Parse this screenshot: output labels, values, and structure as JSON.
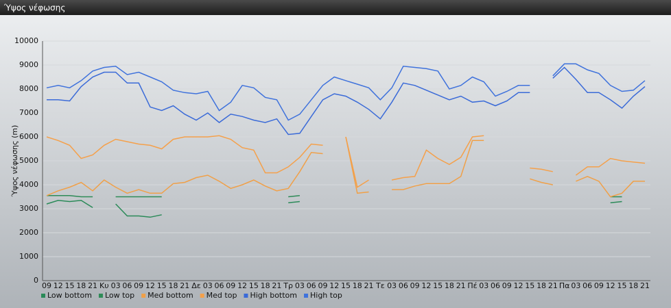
{
  "chart_data": {
    "type": "line",
    "title": "Ύψος νέφωσης",
    "y_label": "Ύψος νέφωσης (m)",
    "categories": [
      "09",
      "12",
      "15",
      "18",
      "21",
      "Κυ",
      "03",
      "06",
      "09",
      "12",
      "15",
      "18",
      "21",
      "Δε",
      "03",
      "06",
      "09",
      "12",
      "15",
      "18",
      "21",
      "Τρ",
      "03",
      "06",
      "09",
      "12",
      "15",
      "18",
      "21",
      "Τε",
      "03",
      "06",
      "09",
      "12",
      "15",
      "18",
      "21",
      "Πέ",
      "03",
      "06",
      "09",
      "12",
      "15",
      "18",
      "21",
      "Πα",
      "03",
      "06",
      "09",
      "12",
      "15",
      "18",
      "21"
    ],
    "series": [
      {
        "name": "Low bottom",
        "color": "#2a8a58",
        "values": [
          3200,
          3350,
          3300,
          3350,
          3050,
          null,
          3200,
          2700,
          2700,
          2650,
          2750,
          null,
          null,
          null,
          null,
          null,
          null,
          null,
          null,
          null,
          null,
          3250,
          3300,
          null,
          null,
          null,
          null,
          null,
          null,
          null,
          null,
          null,
          null,
          null,
          null,
          null,
          null,
          null,
          null,
          null,
          null,
          null,
          null,
          null,
          null,
          null,
          null,
          null,
          null,
          3250,
          3300,
          null,
          null
        ]
      },
      {
        "name": "Low top",
        "color": "#2e8b57",
        "values": [
          3550,
          3550,
          3550,
          3500,
          3500,
          null,
          3500,
          3500,
          3500,
          3500,
          3500,
          null,
          null,
          null,
          null,
          null,
          null,
          null,
          null,
          null,
          null,
          3500,
          3550,
          null,
          null,
          null,
          null,
          null,
          null,
          null,
          null,
          null,
          null,
          null,
          null,
          null,
          null,
          null,
          null,
          null,
          null,
          null,
          null,
          null,
          null,
          null,
          null,
          null,
          null,
          3500,
          3500,
          null,
          null
        ]
      },
      {
        "name": "Med bottom",
        "color": "#f0a048",
        "values": [
          3550,
          3750,
          3900,
          4100,
          3750,
          4200,
          3900,
          3650,
          3800,
          3650,
          3650,
          4050,
          4100,
          4300,
          4400,
          4150,
          3850,
          4000,
          4200,
          3950,
          3750,
          3850,
          4550,
          5350,
          5300,
          null,
          6000,
          3650,
          3700,
          null,
          3800,
          3800,
          3950,
          4050,
          4050,
          4050,
          4350,
          5850,
          5850,
          null,
          null,
          null,
          4250,
          4100,
          4000,
          null,
          4150,
          4350,
          4150,
          3500,
          3650,
          4150,
          4150
        ]
      },
      {
        "name": "Med top",
        "color": "#f5a04a",
        "values": [
          6000,
          5850,
          5650,
          5100,
          5250,
          5650,
          5900,
          5800,
          5700,
          5650,
          5500,
          5900,
          6000,
          6000,
          6000,
          6050,
          5900,
          5550,
          5450,
          4500,
          4500,
          4750,
          5150,
          5700,
          5650,
          null,
          6000,
          3900,
          4200,
          null,
          4200,
          4300,
          4350,
          5450,
          5100,
          4850,
          5150,
          6000,
          6050,
          null,
          null,
          null,
          4700,
          4650,
          4550,
          null,
          4400,
          4750,
          4750,
          5100,
          5000,
          4950,
          4900
        ]
      },
      {
        "name": "High bottom",
        "color": "#3a6ad8",
        "values": [
          7550,
          7550,
          7500,
          8100,
          8500,
          8700,
          8700,
          8250,
          8250,
          7250,
          7100,
          7300,
          6950,
          6700,
          7000,
          6600,
          6950,
          6850,
          6700,
          6600,
          6750,
          6100,
          6150,
          6850,
          7550,
          7800,
          7700,
          7450,
          7150,
          6750,
          7450,
          8250,
          8150,
          7950,
          7750,
          7550,
          7700,
          7450,
          7500,
          7300,
          7500,
          7850,
          7850,
          null,
          8450,
          8900,
          8400,
          7850,
          7850,
          7550,
          7200,
          7700,
          8100
        ]
      },
      {
        "name": "High top",
        "color": "#3f72dc",
        "values": [
          8050,
          8150,
          8050,
          8350,
          8750,
          8900,
          8950,
          8600,
          8700,
          8500,
          8300,
          7950,
          7850,
          7800,
          7900,
          7100,
          7450,
          8150,
          8050,
          7650,
          7550,
          6700,
          6950,
          7550,
          8150,
          8500,
          8350,
          8200,
          8050,
          7550,
          8050,
          8950,
          8900,
          8850,
          8750,
          8000,
          8150,
          8500,
          8300,
          7700,
          7900,
          8150,
          8150,
          null,
          8550,
          9050,
          9050,
          8800,
          8650,
          8150,
          7900,
          7950,
          8350
        ]
      }
    ],
    "ylim": [
      0,
      10000
    ],
    "yticks": [
      0,
      1000,
      2000,
      3000,
      4000,
      5000,
      6000,
      7000,
      8000,
      9000,
      10000
    ],
    "grid": true
  }
}
